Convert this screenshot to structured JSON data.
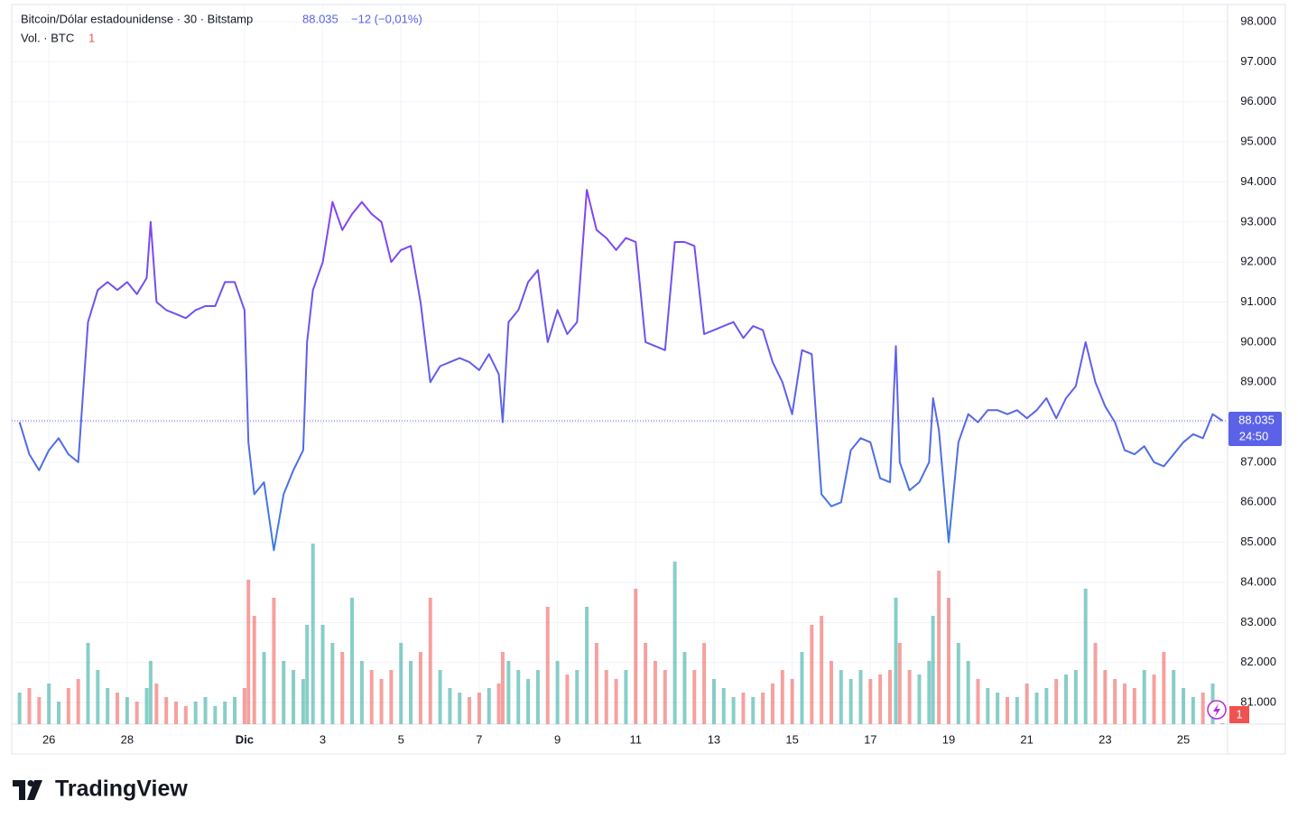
{
  "chart_data": {
    "type": "line",
    "title": "Bitcoin/Dólar estadounidense · 30 · Bitstamp",
    "price_label": "88.035",
    "change_label": "−12 (−0,01%)",
    "countdown": "24:50",
    "volume_title": "Vol. · BTC",
    "volume_last_label": "1",
    "brand": "TradingView",
    "x": [
      25.25,
      25.5,
      25.75,
      26,
      26.25,
      26.5,
      26.75,
      27,
      27.25,
      27.5,
      27.75,
      28,
      28.25,
      28.5,
      28.6,
      28.75,
      29,
      29.25,
      29.5,
      29.75,
      30,
      30.25,
      30.5,
      30.75,
      31,
      31.1,
      31.25,
      31.5,
      31.75,
      32,
      32.25,
      32.5,
      32.6,
      32.75,
      33,
      33.25,
      33.5,
      33.75,
      34,
      34.25,
      34.5,
      34.75,
      35,
      35.25,
      35.5,
      35.75,
      36,
      36.25,
      36.5,
      36.75,
      37,
      37.25,
      37.5,
      37.6,
      37.75,
      38,
      38.25,
      38.5,
      38.75,
      39,
      39.25,
      39.5,
      39.75,
      40,
      40.25,
      40.5,
      40.75,
      41,
      41.25,
      41.5,
      41.75,
      42,
      42.25,
      42.5,
      42.75,
      43,
      43.25,
      43.5,
      43.75,
      44,
      44.25,
      44.5,
      44.75,
      45,
      45.25,
      45.5,
      45.75,
      46,
      46.25,
      46.5,
      46.75,
      47,
      47.25,
      47.5,
      47.65,
      47.75,
      48,
      48.25,
      48.5,
      48.6,
      48.75,
      49,
      49.25,
      49.5,
      49.75,
      50,
      50.25,
      50.5,
      50.75,
      51,
      51.25,
      51.5,
      51.75,
      52,
      52.25,
      52.5,
      52.75,
      53,
      53.25,
      53.5,
      53.75,
      54,
      54.25,
      54.5,
      54.75,
      55,
      55.25,
      55.5,
      55.75,
      56
    ],
    "series": [
      {
        "name": "Bitcoin/Dólar estadounidense",
        "gradient": [
          "#8b3cf7",
          "#3a7fe0"
        ],
        "values": [
          88000,
          87200,
          86800,
          87300,
          87600,
          87200,
          87000,
          90500,
          91300,
          91500,
          91300,
          91500,
          91200,
          91600,
          93000,
          91000,
          90800,
          90700,
          90600,
          90800,
          90900,
          90900,
          91500,
          91500,
          90800,
          87500,
          86200,
          86500,
          84800,
          86200,
          86800,
          87300,
          90000,
          91300,
          92000,
          93500,
          92800,
          93200,
          93500,
          93200,
          93000,
          92000,
          92300,
          92400,
          91000,
          89000,
          89400,
          89500,
          89600,
          89500,
          89300,
          89700,
          89200,
          88000,
          90500,
          90800,
          91500,
          91800,
          90000,
          90800,
          90200,
          90500,
          93800,
          92800,
          92600,
          92300,
          92600,
          92500,
          90000,
          89900,
          89800,
          92500,
          92500,
          92400,
          90200,
          90300,
          90400,
          90500,
          90100,
          90400,
          90300,
          89500,
          89000,
          88200,
          89800,
          89700,
          86200,
          85900,
          86000,
          87300,
          87600,
          87500,
          86600,
          86500,
          89900,
          87000,
          86300,
          86500,
          87000,
          88600,
          87800,
          85000,
          87500,
          88200,
          88000,
          88300,
          88300,
          88200,
          88300,
          88100,
          88300,
          88600,
          88100,
          88600,
          88900,
          90000,
          89000,
          88400,
          88000,
          87300,
          87200,
          87400,
          87000,
          86900,
          87200,
          87500,
          87700,
          87600,
          88200,
          88035
        ]
      }
    ],
    "volume": {
      "up_color": "#26a69a",
      "down_color": "#ef5350",
      "ylim": [
        0,
        250
      ],
      "values": [
        35,
        40,
        30,
        45,
        25,
        40,
        50,
        90,
        60,
        40,
        35,
        30,
        25,
        40,
        70,
        45,
        30,
        25,
        20,
        25,
        30,
        20,
        25,
        30,
        40,
        160,
        120,
        80,
        140,
        70,
        60,
        50,
        110,
        200,
        110,
        90,
        80,
        140,
        70,
        60,
        50,
        60,
        90,
        70,
        80,
        140,
        60,
        40,
        35,
        30,
        35,
        40,
        45,
        80,
        70,
        60,
        50,
        60,
        130,
        70,
        55,
        60,
        130,
        90,
        60,
        50,
        60,
        150,
        90,
        70,
        60,
        180,
        80,
        60,
        90,
        50,
        40,
        30,
        35,
        30,
        35,
        45,
        60,
        50,
        80,
        110,
        120,
        70,
        60,
        50,
        60,
        50,
        55,
        60,
        140,
        90,
        60,
        55,
        70,
        120,
        170,
        140,
        90,
        70,
        50,
        40,
        35,
        30,
        30,
        45,
        35,
        40,
        50,
        55,
        60,
        150,
        90,
        60,
        50,
        45,
        40,
        60,
        55,
        80,
        60,
        40,
        30,
        35,
        45,
        1
      ]
    },
    "xlim": [
      25.05,
      56.13
    ],
    "ylim": [
      80460,
      98430
    ],
    "xticks": [
      {
        "value": 26,
        "label": "26"
      },
      {
        "value": 28,
        "label": "28"
      },
      {
        "value": 31,
        "label": "Dic"
      },
      {
        "value": 33,
        "label": "3"
      },
      {
        "value": 35,
        "label": "5"
      },
      {
        "value": 37,
        "label": "7"
      },
      {
        "value": 39,
        "label": "9"
      },
      {
        "value": 41,
        "label": "11"
      },
      {
        "value": 43,
        "label": "13"
      },
      {
        "value": 45,
        "label": "15"
      },
      {
        "value": 47,
        "label": "17"
      },
      {
        "value": 49,
        "label": "19"
      },
      {
        "value": 51,
        "label": "21"
      },
      {
        "value": 53,
        "label": "23"
      },
      {
        "value": 55,
        "label": "25"
      }
    ],
    "yticks": [
      {
        "value": 98000,
        "label": "98.000"
      },
      {
        "value": 97000,
        "label": "97.000"
      },
      {
        "value": 96000,
        "label": "96.000"
      },
      {
        "value": 95000,
        "label": "95.000"
      },
      {
        "value": 94000,
        "label": "94.000"
      },
      {
        "value": 93000,
        "label": "93.000"
      },
      {
        "value": 92000,
        "label": "92.000"
      },
      {
        "value": 91000,
        "label": "91.000"
      },
      {
        "value": 90000,
        "label": "90.000"
      },
      {
        "value": 89000,
        "label": "89.000"
      },
      {
        "value": 88000,
        "label": "88.000"
      },
      {
        "value": 87000,
        "label": "87.000"
      },
      {
        "value": 86000,
        "label": "86.000"
      },
      {
        "value": 85000,
        "label": "85.000"
      },
      {
        "value": 84000,
        "label": "84.000"
      },
      {
        "value": 83000,
        "label": "83.000"
      },
      {
        "value": 82000,
        "label": "82.000"
      },
      {
        "value": 81000,
        "label": "81.000"
      }
    ],
    "grid": true
  }
}
